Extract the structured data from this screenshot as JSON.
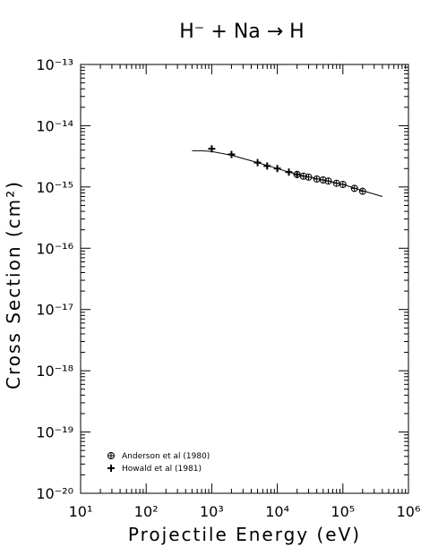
{
  "chart_data": {
    "type": "scatter",
    "title": "H⁻ + Na → H",
    "xlabel": "Projectile Energy (eV)",
    "ylabel": "Cross Section (cm²)",
    "x_scale": "log",
    "y_scale": "log",
    "xlim": [
      10,
      1000000
    ],
    "ylim": [
      1e-20,
      1e-13
    ],
    "grid": false,
    "legend_position": "bottom-left",
    "x_tick_labels": [
      "10¹",
      "10²",
      "10³",
      "10⁴",
      "10⁵",
      "10⁶"
    ],
    "y_tick_labels": [
      "10⁻²⁰",
      "10⁻¹⁹",
      "10⁻¹⁸",
      "10⁻¹⁷",
      "10⁻¹⁶",
      "10⁻¹⁵",
      "10⁻¹⁴",
      "10⁻¹³"
    ],
    "series": [
      {
        "name": "Anderson et al (1980)",
        "marker": "circle-plus",
        "points": [
          {
            "x": 20000,
            "y": 1.6e-15
          },
          {
            "x": 25000,
            "y": 1.5e-15
          },
          {
            "x": 30000,
            "y": 1.45e-15
          },
          {
            "x": 40000,
            "y": 1.35e-15
          },
          {
            "x": 50000,
            "y": 1.3e-15
          },
          {
            "x": 60000,
            "y": 1.25e-15
          },
          {
            "x": 80000,
            "y": 1.15e-15
          },
          {
            "x": 100000,
            "y": 1.1e-15
          },
          {
            "x": 150000,
            "y": 9.5e-16
          },
          {
            "x": 200000,
            "y": 8.5e-16
          }
        ]
      },
      {
        "name": "Howald et al (1981)",
        "marker": "plus",
        "points": [
          {
            "x": 1000,
            "y": 4.2e-15
          },
          {
            "x": 2000,
            "y": 3.4e-15
          },
          {
            "x": 5000,
            "y": 2.5e-15
          },
          {
            "x": 7000,
            "y": 2.2e-15
          },
          {
            "x": 10000,
            "y": 2e-15
          },
          {
            "x": 15000,
            "y": 1.75e-15
          },
          {
            "x": 20000,
            "y": 1.6e-15
          }
        ]
      },
      {
        "name": "",
        "style": "line",
        "points": [
          {
            "x": 500,
            "y": 3.9e-15
          },
          {
            "x": 700,
            "y": 3.9e-15
          },
          {
            "x": 1000,
            "y": 3.8e-15
          },
          {
            "x": 2000,
            "y": 3.3e-15
          },
          {
            "x": 5000,
            "y": 2.5e-15
          },
          {
            "x": 10000,
            "y": 2e-15
          },
          {
            "x": 20000,
            "y": 1.6e-15
          },
          {
            "x": 50000,
            "y": 1.3e-15
          },
          {
            "x": 100000,
            "y": 1.1e-15
          },
          {
            "x": 200000,
            "y": 8.7e-16
          },
          {
            "x": 400000,
            "y": 7e-16
          }
        ]
      }
    ]
  }
}
